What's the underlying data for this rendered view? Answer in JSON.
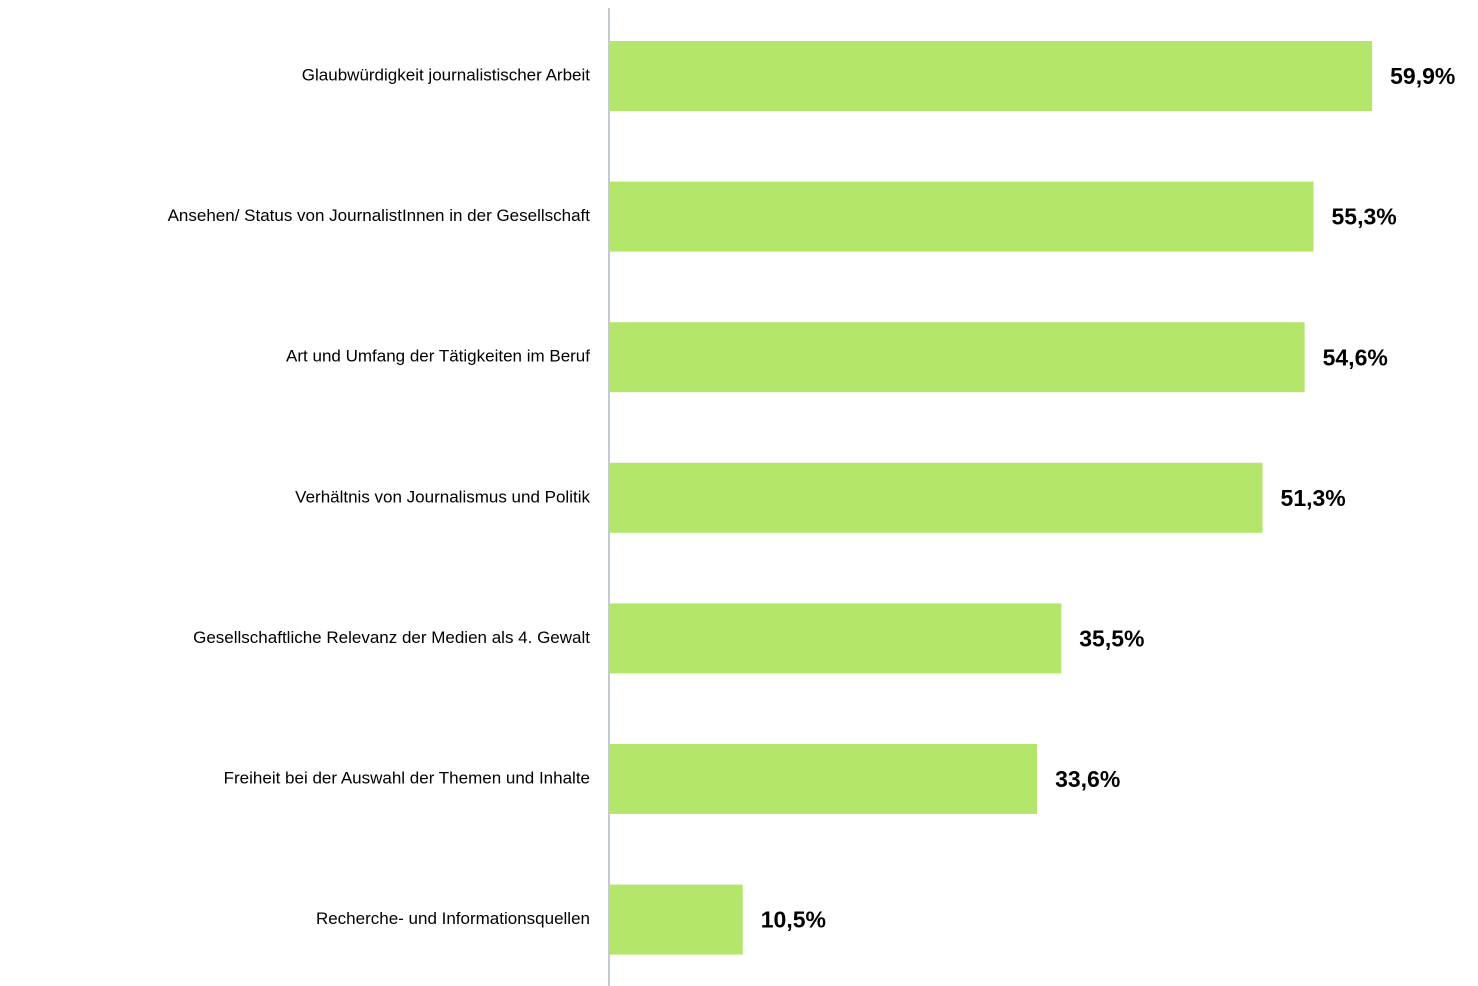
{
  "chart_data": {
    "type": "barh",
    "categories": [
      "Glaubwürdigkeit journalistischer Arbeit",
      "Ansehen/ Status von JournalistInnen in der Gesellschaft",
      "Art und Umfang der Tätigkeiten im Beruf",
      "Verhältnis von Journalismus und Politik",
      "Gesellschaftliche Relevanz der Medien als 4. Gewalt",
      "Freiheit bei der Auswahl der Themen und Inhalte",
      "Recherche- und Informationsquellen"
    ],
    "values": [
      59.9,
      55.3,
      54.6,
      51.3,
      35.5,
      33.6,
      10.5
    ],
    "value_labels": [
      "59,9%",
      "55,3%",
      "54,6%",
      "51,3%",
      "35,5%",
      "33,6%",
      "10,5%"
    ],
    "color": "#b3e66b"
  }
}
